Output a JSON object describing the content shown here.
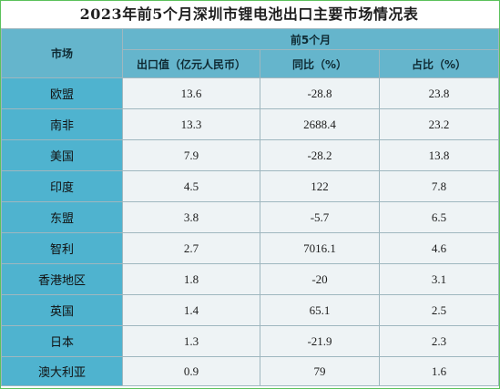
{
  "title": "2023年前5个月深圳市锂电池出口主要市场情况表",
  "table": {
    "market_header": "市场",
    "group_header": "前5个月",
    "columns": [
      "出口值（亿元人民币）",
      "同比（%）",
      "占比（%）"
    ],
    "rows": [
      {
        "market": "欧盟",
        "value": "13.6",
        "yoy": "-28.8",
        "share": "23.8"
      },
      {
        "market": "南非",
        "value": "13.3",
        "yoy": "2688.4",
        "share": "23.2"
      },
      {
        "market": "美国",
        "value": "7.9",
        "yoy": "-28.2",
        "share": "13.8"
      },
      {
        "market": "印度",
        "value": "4.5",
        "yoy": "122",
        "share": "7.8"
      },
      {
        "market": "东盟",
        "value": "3.8",
        "yoy": "-5.7",
        "share": "6.5"
      },
      {
        "market": "智利",
        "value": "2.7",
        "yoy": "7016.1",
        "share": "4.6"
      },
      {
        "market": "香港地区",
        "value": "1.8",
        "yoy": "-20",
        "share": "3.1"
      },
      {
        "market": "英国",
        "value": "1.4",
        "yoy": "65.1",
        "share": "2.5"
      },
      {
        "market": "日本",
        "value": "1.3",
        "yoy": "-21.9",
        "share": "2.3"
      },
      {
        "market": "澳大利亚",
        "value": "0.9",
        "yoy": "79",
        "share": "1.6"
      }
    ]
  },
  "colors": {
    "header_bg": "#65b5cc",
    "market_bg": "#4fb3cf",
    "cell_bg": "#eef3f5",
    "frame_border": "#5cc15c"
  }
}
